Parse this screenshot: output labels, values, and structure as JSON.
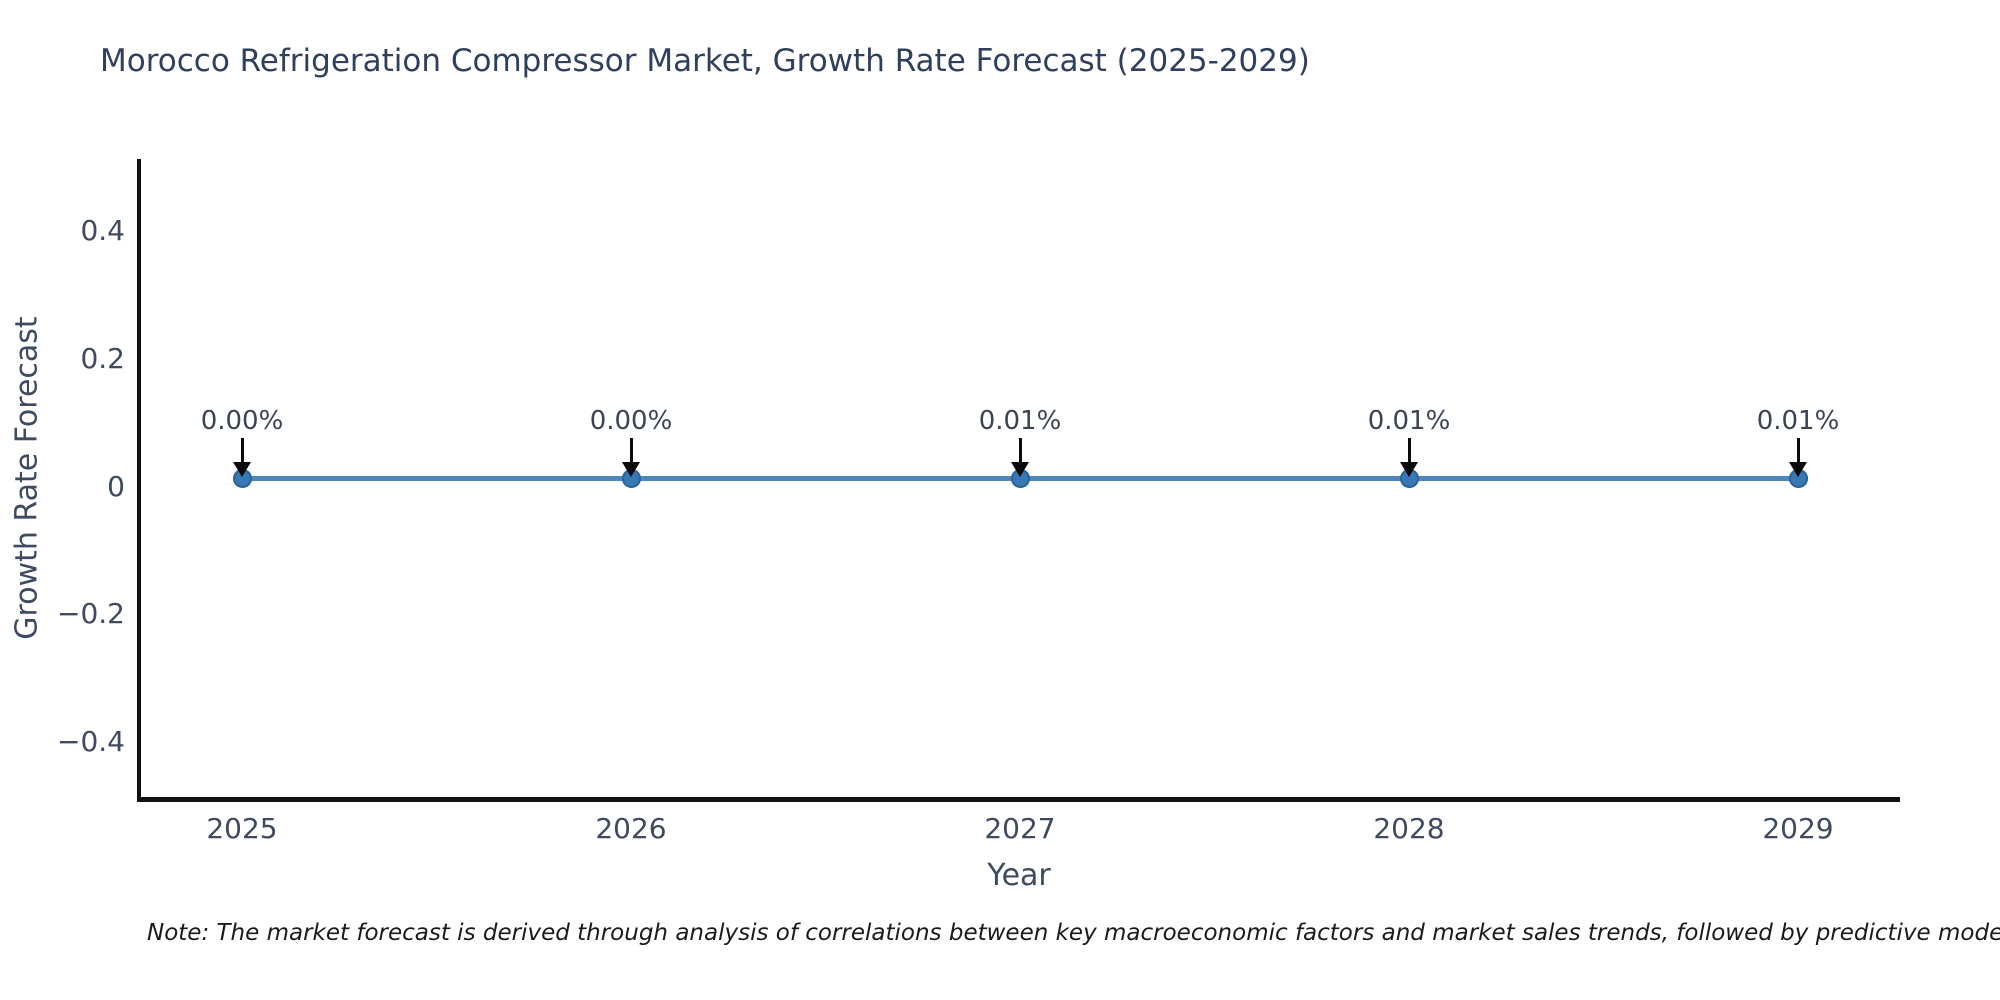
{
  "title": "Morocco Refrigeration Compressor Market, Growth Rate Forecast (2025-2029)",
  "note": "Note: The market forecast is derived through analysis of correlations between key macroeconomic factors and market sales trends, followed by predictive modeling to project future sa",
  "colors": {
    "title_text": "#2f3f5c",
    "axis_text": "#3f4a5e",
    "spine": "#111111",
    "line": "#4e86bb",
    "marker_fill": "#3778b5",
    "marker_edge": "#2d6396",
    "arrow": "#0b0b0b",
    "background": "#ffffff"
  },
  "chart_data": {
    "type": "line",
    "title": "Morocco Refrigeration Compressor Market, Growth Rate Forecast (2025-2029)",
    "xlabel": "Year",
    "ylabel": "Growth Rate Forecast",
    "x": [
      2025,
      2026,
      2027,
      2028,
      2029
    ],
    "series": [
      {
        "name": "Growth Rate Forecast",
        "values": [
          0.0,
          0.0,
          0.01,
          0.01,
          0.01
        ],
        "point_labels": [
          "0.00%",
          "0.00%",
          "0.01%",
          "0.01%",
          "0.01%"
        ]
      }
    ],
    "xticks": [
      "2025",
      "2026",
      "2027",
      "2028",
      "2029"
    ],
    "yticks": [
      "0.4",
      "0.2",
      "0",
      "−0.2",
      "−0.4"
    ],
    "ylim": [
      -0.5,
      0.5
    ],
    "grid": false,
    "legend": false,
    "marker_style": "filled circle",
    "annotation_style": "value labels above points with black downward arrows"
  }
}
